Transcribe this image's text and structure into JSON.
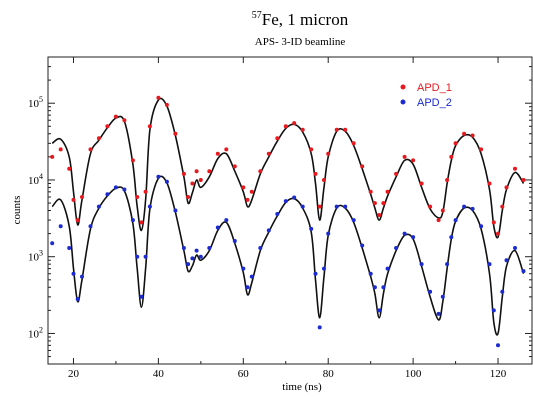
{
  "chart_data": {
    "type": "scatter",
    "title_sup": "57",
    "title_main": "Fe, 1 micron",
    "subtitle": "APS- 3-ID beamline",
    "xlabel": "time (ns)",
    "ylabel": "counts",
    "xlim": [
      14,
      128
    ],
    "ylim": [
      40,
      400000
    ],
    "yscale": "log",
    "grid": false,
    "legend_position": "top-right",
    "xticks": [
      {
        "value": 20,
        "label": "20"
      },
      {
        "value": 40,
        "label": "40"
      },
      {
        "value": 60,
        "label": "60"
      },
      {
        "value": 80,
        "label": "80"
      },
      {
        "value": 100,
        "label": "100"
      },
      {
        "value": 120,
        "label": "120"
      }
    ],
    "yticks": [
      {
        "value": 100,
        "base": "10",
        "exp": "2"
      },
      {
        "value": 1000,
        "base": "10",
        "exp": "3"
      },
      {
        "value": 10000,
        "base": "10",
        "exp": "4"
      },
      {
        "value": 100000,
        "base": "10",
        "exp": "5"
      }
    ],
    "series": [
      {
        "name": "APD_1",
        "color": "#e8191e",
        "x": [
          15,
          17,
          19,
          20,
          21,
          22,
          24,
          26,
          28,
          30,
          32,
          34,
          35,
          36,
          37,
          38,
          40,
          42,
          44,
          46,
          47,
          48,
          49,
          50,
          52,
          54,
          56,
          58,
          60,
          61,
          62,
          64,
          66,
          68,
          70,
          72,
          74,
          76,
          77,
          78,
          79,
          80,
          82,
          84,
          86,
          88,
          90,
          91,
          92,
          93,
          94,
          96,
          98,
          100,
          102,
          104,
          106,
          107,
          108,
          109,
          110,
          112,
          114,
          116,
          118,
          119,
          120,
          121,
          122,
          124,
          126
        ],
        "y": [
          20000,
          25000,
          14000,
          5500,
          3000,
          6000,
          25000,
          35000,
          50000,
          67000,
          60000,
          18000,
          6000,
          2800,
          7000,
          50000,
          118000,
          95000,
          40000,
          12000,
          6000,
          9000,
          13000,
          10000,
          13000,
          22000,
          25000,
          15000,
          8000,
          5500,
          7000,
          13000,
          22000,
          35000,
          50000,
          55000,
          45000,
          25000,
          12000,
          4500,
          10000,
          22000,
          45000,
          45000,
          30000,
          15000,
          7000,
          5000,
          3500,
          5000,
          7000,
          12000,
          20000,
          18000,
          9000,
          4500,
          3000,
          4000,
          10000,
          20000,
          30000,
          40000,
          38000,
          25000,
          9000,
          2800,
          2000,
          4500,
          8000,
          14000,
          10000
        ]
      },
      {
        "name": "APD_2",
        "color": "#1b2bd1",
        "x": [
          15,
          17,
          19,
          20,
          21,
          22,
          24,
          26,
          28,
          30,
          32,
          34,
          35,
          36,
          37,
          38,
          40,
          42,
          44,
          46,
          47,
          48,
          49,
          50,
          52,
          54,
          56,
          58,
          60,
          61,
          62,
          64,
          66,
          68,
          70,
          72,
          74,
          76,
          77,
          78,
          79,
          80,
          82,
          84,
          86,
          88,
          90,
          91,
          92,
          93,
          94,
          96,
          98,
          100,
          102,
          104,
          106,
          107,
          108,
          109,
          110,
          112,
          114,
          116,
          118,
          119,
          120,
          121,
          122,
          124,
          126
        ],
        "y": [
          1500,
          2500,
          1300,
          600,
          280,
          550,
          2500,
          4500,
          6500,
          8000,
          7500,
          3000,
          1000,
          300,
          1000,
          4500,
          11000,
          9500,
          4000,
          1300,
          800,
          950,
          1200,
          1000,
          1300,
          2400,
          3000,
          1600,
          700,
          400,
          550,
          1300,
          2200,
          3600,
          5300,
          5900,
          4500,
          2300,
          600,
          120,
          700,
          2000,
          4500,
          4500,
          3000,
          1400,
          600,
          400,
          200,
          400,
          700,
          1300,
          2000,
          1800,
          800,
          350,
          180,
          300,
          800,
          1800,
          3000,
          4500,
          4200,
          2500,
          800,
          200,
          70,
          350,
          900,
          1300,
          650
        ]
      }
    ],
    "fit_curves": [
      {
        "color": "#111111",
        "x": [
          15,
          17,
          19,
          20,
          21,
          22,
          24,
          26,
          28,
          30,
          32,
          34,
          35,
          36,
          37,
          38,
          40,
          42,
          44,
          46,
          47,
          48,
          49,
          50,
          52,
          54,
          56,
          58,
          60,
          61,
          62,
          64,
          66,
          68,
          70,
          72,
          74,
          76,
          77,
          78,
          79,
          80,
          82,
          84,
          86,
          88,
          90,
          91,
          92,
          93,
          94,
          96,
          98,
          100,
          102,
          104,
          106,
          107,
          108,
          109,
          110,
          112,
          114,
          116,
          118,
          119,
          120,
          121,
          122,
          124,
          126
        ],
        "y": [
          30000,
          34000,
          20000,
          7000,
          2600,
          5500,
          22000,
          33000,
          48000,
          64000,
          58000,
          16000,
          4500,
          2200,
          5500,
          45000,
          110000,
          92000,
          38000,
          11000,
          5000,
          6800,
          10000,
          8000,
          11000,
          19000,
          22000,
          13000,
          7000,
          4500,
          5500,
          12000,
          20000,
          32000,
          47000,
          53000,
          42000,
          22000,
          9000,
          3000,
          8000,
          20000,
          43000,
          43000,
          28000,
          14000,
          6500,
          4300,
          3000,
          4300,
          6200,
          11000,
          18000,
          16000,
          8000,
          4200,
          3200,
          3800,
          9000,
          18000,
          28000,
          38000,
          36000,
          22000,
          7500,
          2500,
          1800,
          4000,
          7500,
          12500,
          9000
        ]
      },
      {
        "color": "#111111",
        "x": [
          15,
          17,
          19,
          20,
          21,
          22,
          24,
          26,
          28,
          30,
          32,
          34,
          35,
          36,
          37,
          38,
          40,
          42,
          44,
          46,
          47,
          48,
          49,
          50,
          52,
          54,
          56,
          58,
          60,
          61,
          62,
          64,
          66,
          68,
          70,
          72,
          74,
          76,
          77,
          78,
          79,
          80,
          82,
          84,
          86,
          88,
          90,
          91,
          92,
          93,
          94,
          96,
          98,
          100,
          102,
          104,
          106,
          107,
          108,
          109,
          110,
          112,
          114,
          116,
          118,
          119,
          120,
          121,
          122,
          124,
          126
        ],
        "y": [
          4500,
          5500,
          2500,
          700,
          260,
          500,
          2300,
          4300,
          6200,
          7800,
          7200,
          2700,
          700,
          220,
          700,
          4200,
          10500,
          9200,
          3800,
          1200,
          650,
          760,
          1050,
          900,
          1200,
          2200,
          2800,
          1500,
          620,
          320,
          460,
          1200,
          2100,
          3400,
          5100,
          5700,
          4300,
          2100,
          500,
          160,
          550,
          1900,
          4300,
          4300,
          2800,
          1300,
          550,
          330,
          160,
          330,
          600,
          1200,
          1900,
          1700,
          750,
          300,
          150,
          260,
          700,
          1700,
          2900,
          4300,
          4000,
          2300,
          600,
          140,
          100,
          300,
          750,
          1200,
          600
        ]
      }
    ]
  }
}
